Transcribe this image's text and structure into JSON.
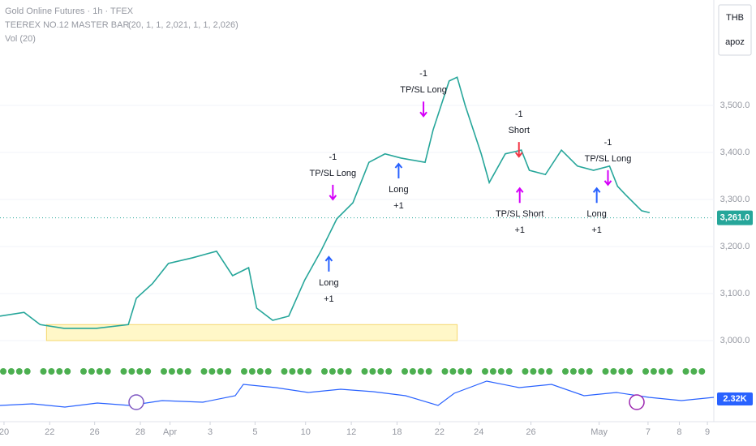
{
  "chart_data": {
    "type": "line",
    "title": "Gold Online Futures · 1h · TFEX",
    "indicator": "TEEREX NO.12 MASTER BAR",
    "indicator_params": "(20, 1, 1, 2,021, 1, 1, 2,026)",
    "volume_label": "Vol (20)",
    "currency": "THB",
    "user": "apoz",
    "volume_value_label": "2.32K",
    "series": [
      {
        "name": "Gold",
        "color": "#26a69a",
        "x": [
          0,
          3,
          5,
          8,
          12,
          16,
          17,
          19,
          21,
          24,
          27,
          29,
          31,
          32,
          34,
          36,
          38,
          40,
          42,
          44,
          46,
          48,
          50,
          53,
          54,
          56,
          57,
          58,
          60,
          61,
          63,
          65,
          66,
          68,
          70,
          72,
          74,
          76,
          77,
          78,
          79,
          80,
          81
        ],
        "values": [
          3052,
          3060,
          3034,
          3026,
          3026,
          3034,
          3090,
          3121,
          3164,
          3176,
          3190,
          3138,
          3155,
          3069,
          3043,
          3052,
          3129,
          3190,
          3259,
          3293,
          3379,
          3397,
          3388,
          3379,
          3448,
          3552,
          3560,
          3500,
          3397,
          3336,
          3397,
          3405,
          3362,
          3353,
          3405,
          3371,
          3362,
          3371,
          3328,
          3310,
          3293,
          3276,
          3272
        ]
      }
    ],
    "last_price": {
      "value": 3261,
      "label": "3,261.0"
    },
    "zone": {
      "xlim": [
        5.8,
        57
      ],
      "ylim": [
        3000,
        3034
      ],
      "color": "#fff3b0"
    },
    "signals": [
      {
        "x": 41,
        "price": 3164,
        "direction": "up",
        "color": "#2962ff",
        "lines": [
          "Long",
          "+1"
        ]
      },
      {
        "x": 41.5,
        "price": 3314,
        "direction": "down",
        "color": "#d500f9",
        "lines": [
          "-1",
          "TP/SL Long"
        ]
      },
      {
        "x": 49.7,
        "price": 3362,
        "direction": "up",
        "color": "#2962ff",
        "lines": [
          "Long",
          "+1"
        ]
      },
      {
        "x": 52.8,
        "price": 3491,
        "direction": "down",
        "color": "#d500f9",
        "lines": [
          "-1",
          "TP/SL Long"
        ]
      },
      {
        "x": 64.7,
        "price": 3405,
        "direction": "down",
        "color": "#f23645",
        "lines": [
          "-1",
          "Short"
        ]
      },
      {
        "x": 64.8,
        "price": 3310,
        "direction": "up",
        "color": "#d500f9",
        "lines": [
          "TP/SL Short",
          "+1"
        ]
      },
      {
        "x": 74.4,
        "price": 3310,
        "direction": "up",
        "color": "#2962ff",
        "lines": [
          "Long",
          "+1"
        ]
      },
      {
        "x": 75.8,
        "price": 3345,
        "direction": "down",
        "color": "#d500f9",
        "lines": [
          "-1",
          "TP/SL Long"
        ]
      }
    ],
    "xlim": [
      0,
      89
    ],
    "xticks": [
      {
        "value": 0.5,
        "label": "20"
      },
      {
        "value": 6.2,
        "label": "22"
      },
      {
        "value": 11.8,
        "label": "26"
      },
      {
        "value": 17.5,
        "label": "28"
      },
      {
        "value": 21.2,
        "label": "Apr"
      },
      {
        "value": 26.2,
        "label": "3"
      },
      {
        "value": 31.8,
        "label": "5"
      },
      {
        "value": 38.1,
        "label": "10"
      },
      {
        "value": 43.8,
        "label": "12"
      },
      {
        "value": 49.5,
        "label": "18"
      },
      {
        "value": 54.8,
        "label": "22"
      },
      {
        "value": 59.7,
        "label": "24"
      },
      {
        "value": 66.2,
        "label": "26"
      },
      {
        "value": 74.7,
        "label": "May"
      },
      {
        "value": 80.8,
        "label": "7"
      },
      {
        "value": 84.7,
        "label": "8"
      },
      {
        "value": 88.2,
        "label": "9"
      }
    ],
    "ylim": [
      2900,
      3600
    ],
    "yticks": [
      {
        "value": 3000,
        "label": "3,000.0"
      },
      {
        "value": 3100,
        "label": "3,100.0"
      },
      {
        "value": 3200,
        "label": "3,200.0"
      },
      {
        "value": 3300,
        "label": "3,300.0"
      },
      {
        "value": 3400,
        "label": "3,400.0"
      },
      {
        "value": 3500,
        "label": "3,500.0"
      }
    ]
  }
}
